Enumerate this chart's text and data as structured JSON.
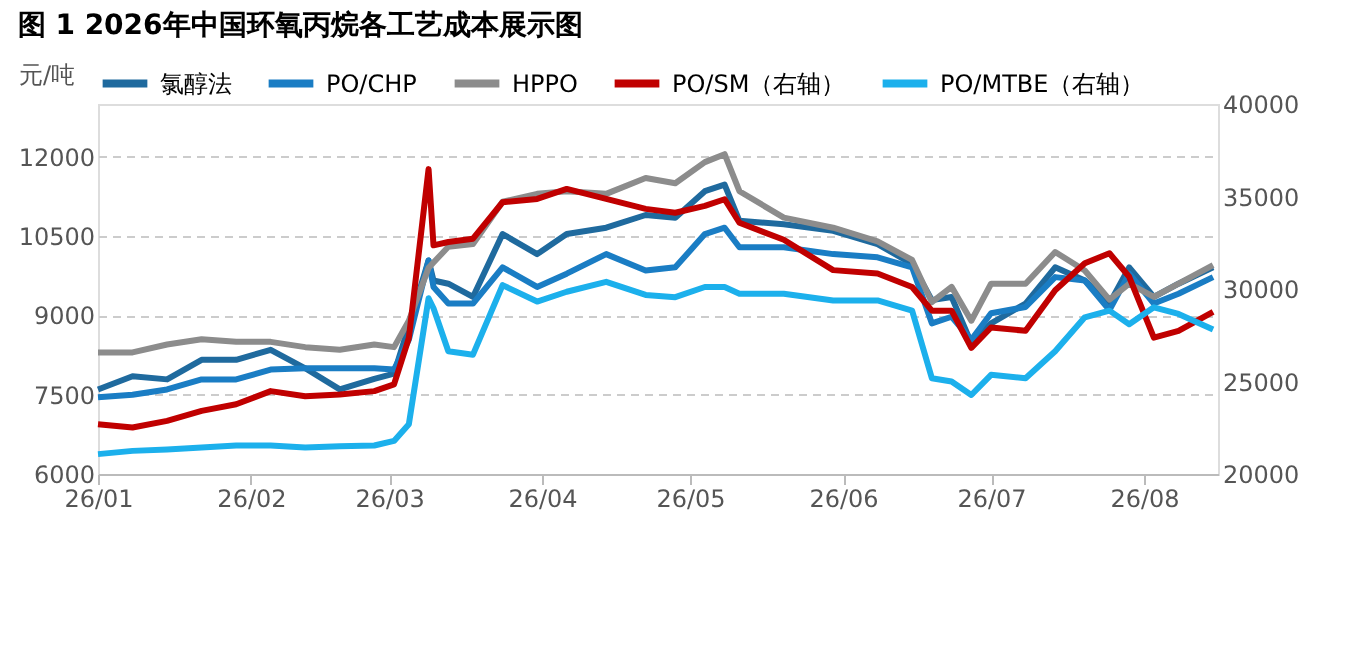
{
  "chart_data": {
    "type": "line",
    "title": "图 1 2026年中国环氧丙烷各工艺成本展示图",
    "ylabel": "元/吨",
    "x": [
      "2026-01-01",
      "2026-01-08",
      "2026-01-15",
      "2026-01-22",
      "2026-01-29",
      "2026-02-05",
      "2026-02-12",
      "2026-02-19",
      "2026-02-26",
      "2026-03-02",
      "2026-03-05",
      "2026-03-09",
      "2026-03-10",
      "2026-03-13",
      "2026-03-18",
      "2026-03-24",
      "2026-03-31",
      "2026-04-06",
      "2026-04-14",
      "2026-04-22",
      "2026-04-28",
      "2026-05-04",
      "2026-05-08",
      "2026-05-11",
      "2026-05-20",
      "2026-05-30",
      "2026-06-08",
      "2026-06-15",
      "2026-06-19",
      "2026-06-23",
      "2026-06-27",
      "2026-07-01",
      "2026-07-08",
      "2026-07-14",
      "2026-07-20",
      "2026-07-25",
      "2026-07-29",
      "2026-08-03",
      "2026-08-08",
      "2026-08-15"
    ],
    "series": [
      {
        "name": "氯醇法",
        "color": "#1f6a9e",
        "values": [
          7600,
          7850,
          7790,
          8160,
          8160,
          8350,
          8000,
          7600,
          7800,
          7900,
          8800,
          10040,
          9660,
          9600,
          9350,
          10540,
          10160,
          10540,
          10660,
          10900,
          10850,
          11350,
          11475,
          10790,
          10725,
          10600,
          10350,
          9975,
          9290,
          9350,
          8475,
          8850,
          9225,
          9910,
          9660,
          9225,
          9910,
          9350,
          9600,
          9910
        ]
      },
      {
        "name": "PO/CHP",
        "color": "#1a7dc4",
        "values": [
          7450,
          7500,
          7600,
          7790,
          7790,
          7975,
          8000,
          8000,
          8000,
          7975,
          8540,
          10040,
          9540,
          9225,
          9225,
          9910,
          9540,
          9790,
          10160,
          9850,
          9910,
          10540,
          10660,
          10290,
          10290,
          10160,
          10100,
          9910,
          8850,
          8975,
          8540,
          9040,
          9160,
          9725,
          9660,
          9100,
          9790,
          9225,
          9410,
          9725
        ]
      },
      {
        "name": "HPPO",
        "color": "#8c8c8c",
        "values": [
          8300,
          8300,
          8450,
          8550,
          8500,
          8500,
          8400,
          8350,
          8450,
          8400,
          8900,
          9900,
          10000,
          10300,
          10350,
          11150,
          11300,
          11350,
          11300,
          11600,
          11500,
          11900,
          12050,
          11350,
          10850,
          10660,
          10400,
          10050,
          9250,
          9540,
          8900,
          9600,
          9600,
          10200,
          9850,
          9300,
          9600,
          9350,
          9600,
          9950
        ]
      },
      {
        "name": "PO/SM（右轴）",
        "color": "#c00000",
        "axis": "y2",
        "values": [
          22690,
          22510,
          22870,
          23410,
          23770,
          24480,
          24200,
          24300,
          24480,
          24840,
          27350,
          36480,
          32360,
          32540,
          32720,
          34690,
          34870,
          35410,
          34870,
          34330,
          34120,
          34490,
          34850,
          33580,
          32660,
          31020,
          30840,
          30110,
          28830,
          28830,
          26820,
          27920,
          27740,
          29930,
          31390,
          31930,
          30660,
          27370,
          27740,
          28760
        ]
      },
      {
        "name": "PO/MTBE（右轴）",
        "color": "#1cb0ec",
        "axis": "y2",
        "values": [
          21075,
          21250,
          21330,
          21430,
          21540,
          21540,
          21430,
          21500,
          21540,
          21790,
          22690,
          29500,
          28960,
          26630,
          26450,
          30210,
          29320,
          29850,
          30390,
          29680,
          29560,
          30110,
          30110,
          29740,
          29740,
          29380,
          29380,
          28830,
          25180,
          25000,
          24270,
          25360,
          25180,
          26640,
          28470,
          28830,
          28100,
          29010,
          28650,
          27810
        ]
      }
    ],
    "xlim": [
      "2026-01-01",
      "2026-08-16"
    ],
    "xticks": [
      {
        "value": "2026-01-01",
        "label": "26/01"
      },
      {
        "value": "2026-02-01",
        "label": "26/02"
      },
      {
        "value": "2026-03-01",
        "label": "26/03"
      },
      {
        "value": "2026-04-01",
        "label": "26/04"
      },
      {
        "value": "2026-05-01",
        "label": "26/05"
      },
      {
        "value": "2026-06-01",
        "label": "26/06"
      },
      {
        "value": "2026-07-01",
        "label": "26/07"
      },
      {
        "value": "2026-08-01",
        "label": "26/08"
      }
    ],
    "ylim": [
      6000,
      13000
    ],
    "yticks": [
      6000,
      7500,
      9000,
      10500,
      12000
    ],
    "y2lim": [
      20000,
      40000
    ],
    "y2ticks": [
      20000,
      25000,
      30000,
      35000,
      40000
    ],
    "grid": "y",
    "legend": "top",
    "marker": "none",
    "line_style": "solid"
  }
}
